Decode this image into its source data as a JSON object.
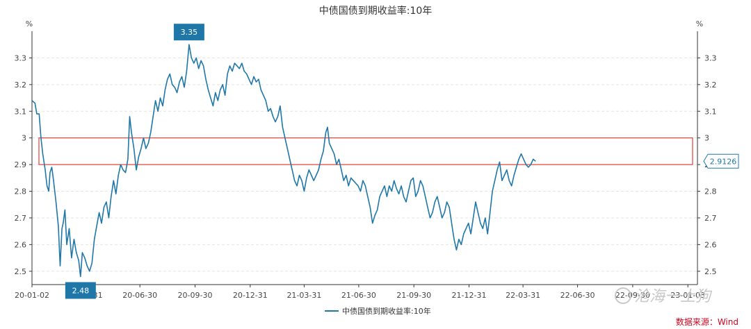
{
  "chart_data": {
    "type": "line",
    "title": "中债国债到期收益率:10年",
    "y_unit_left": "%",
    "y_unit_right": "%",
    "ylim": [
      2.45,
      3.4
    ],
    "yticks": [
      2.5,
      2.6,
      2.7,
      2.8,
      2.9,
      3,
      3.1,
      3.2,
      3.3
    ],
    "ytick_labels": [
      "2.5",
      "2.6",
      "2.7",
      "2.8",
      "2.9",
      "3",
      "3.1",
      "3.2",
      "3.3"
    ],
    "x_range_days": [
      0,
      1110
    ],
    "xticks": [
      {
        "day": 0,
        "label": "20-01-02"
      },
      {
        "day": 89,
        "label": "20-03-31"
      },
      {
        "day": 180,
        "label": "20-06-30"
      },
      {
        "day": 272,
        "label": "20-09-30"
      },
      {
        "day": 364,
        "label": "20-12-31"
      },
      {
        "day": 454,
        "label": "21-03-31"
      },
      {
        "day": 545,
        "label": "21-06-30"
      },
      {
        "day": 637,
        "label": "21-09-30"
      },
      {
        "day": 729,
        "label": "21-12-31"
      },
      {
        "day": 819,
        "label": "22-03-31"
      },
      {
        "day": 910,
        "label": "22-06-30"
      },
      {
        "day": 1002,
        "label": "22-09-30"
      },
      {
        "day": 1094,
        "label": "23-01-03"
      }
    ],
    "series": [
      {
        "name": "中债国债到期收益率:10年",
        "color": "#1f77a8",
        "points": [
          [
            0,
            3.14
          ],
          [
            5,
            3.13
          ],
          [
            8,
            3.09
          ],
          [
            12,
            3.09
          ],
          [
            15,
            3.0
          ],
          [
            18,
            2.94
          ],
          [
            22,
            2.88
          ],
          [
            25,
            2.82
          ],
          [
            28,
            2.8
          ],
          [
            30,
            2.87
          ],
          [
            33,
            2.89
          ],
          [
            36,
            2.84
          ],
          [
            40,
            2.76
          ],
          [
            44,
            2.67
          ],
          [
            47,
            2.52
          ],
          [
            50,
            2.66
          ],
          [
            52,
            2.68
          ],
          [
            55,
            2.73
          ],
          [
            58,
            2.6
          ],
          [
            62,
            2.66
          ],
          [
            66,
            2.55
          ],
          [
            70,
            2.62
          ],
          [
            74,
            2.57
          ],
          [
            78,
            2.54
          ],
          [
            81,
            2.48
          ],
          [
            84,
            2.57
          ],
          [
            88,
            2.55
          ],
          [
            92,
            2.52
          ],
          [
            96,
            2.5
          ],
          [
            100,
            2.53
          ],
          [
            104,
            2.62
          ],
          [
            108,
            2.67
          ],
          [
            112,
            2.72
          ],
          [
            116,
            2.68
          ],
          [
            120,
            2.74
          ],
          [
            124,
            2.76
          ],
          [
            128,
            2.7
          ],
          [
            132,
            2.78
          ],
          [
            136,
            2.84
          ],
          [
            140,
            2.79
          ],
          [
            144,
            2.86
          ],
          [
            148,
            2.9
          ],
          [
            152,
            2.88
          ],
          [
            156,
            2.87
          ],
          [
            160,
            2.92
          ],
          [
            163,
            3.08
          ],
          [
            166,
            3.02
          ],
          [
            170,
            2.96
          ],
          [
            174,
            2.88
          ],
          [
            178,
            2.93
          ],
          [
            182,
            2.96
          ],
          [
            186,
            3.0
          ],
          [
            190,
            2.96
          ],
          [
            194,
            2.98
          ],
          [
            198,
            3.02
          ],
          [
            202,
            3.08
          ],
          [
            206,
            3.14
          ],
          [
            210,
            3.1
          ],
          [
            214,
            3.15
          ],
          [
            218,
            3.12
          ],
          [
            222,
            3.18
          ],
          [
            226,
            3.22
          ],
          [
            230,
            3.24
          ],
          [
            234,
            3.2
          ],
          [
            238,
            3.19
          ],
          [
            242,
            3.17
          ],
          [
            246,
            3.21
          ],
          [
            250,
            3.23
          ],
          [
            254,
            3.19
          ],
          [
            258,
            3.25
          ],
          [
            262,
            3.35
          ],
          [
            266,
            3.3
          ],
          [
            270,
            3.28
          ],
          [
            274,
            3.3
          ],
          [
            278,
            3.26
          ],
          [
            282,
            3.29
          ],
          [
            286,
            3.27
          ],
          [
            290,
            3.22
          ],
          [
            294,
            3.18
          ],
          [
            298,
            3.15
          ],
          [
            302,
            3.12
          ],
          [
            306,
            3.17
          ],
          [
            310,
            3.14
          ],
          [
            314,
            3.18
          ],
          [
            318,
            3.2
          ],
          [
            322,
            3.16
          ],
          [
            326,
            3.24
          ],
          [
            330,
            3.27
          ],
          [
            334,
            3.25
          ],
          [
            338,
            3.28
          ],
          [
            342,
            3.27
          ],
          [
            346,
            3.26
          ],
          [
            350,
            3.28
          ],
          [
            354,
            3.25
          ],
          [
            358,
            3.24
          ],
          [
            362,
            3.22
          ],
          [
            366,
            3.2
          ],
          [
            370,
            3.23
          ],
          [
            374,
            3.21
          ],
          [
            378,
            3.22
          ],
          [
            382,
            3.18
          ],
          [
            386,
            3.16
          ],
          [
            390,
            3.14
          ],
          [
            394,
            3.1
          ],
          [
            398,
            3.11
          ],
          [
            402,
            3.08
          ],
          [
            406,
            3.06
          ],
          [
            410,
            3.08
          ],
          [
            414,
            3.12
          ],
          [
            418,
            3.04
          ],
          [
            422,
            3.0
          ],
          [
            426,
            2.96
          ],
          [
            430,
            2.92
          ],
          [
            434,
            2.88
          ],
          [
            438,
            2.84
          ],
          [
            442,
            2.82
          ],
          [
            446,
            2.86
          ],
          [
            450,
            2.84
          ],
          [
            454,
            2.8
          ],
          [
            458,
            2.85
          ],
          [
            462,
            2.88
          ],
          [
            466,
            2.86
          ],
          [
            470,
            2.84
          ],
          [
            474,
            2.86
          ],
          [
            478,
            2.88
          ],
          [
            482,
            2.92
          ],
          [
            486,
            2.95
          ],
          [
            490,
            3.02
          ],
          [
            493,
            3.04
          ],
          [
            496,
            2.98
          ],
          [
            500,
            2.96
          ],
          [
            504,
            2.94
          ],
          [
            508,
            2.9
          ],
          [
            512,
            2.92
          ],
          [
            516,
            2.88
          ],
          [
            520,
            2.84
          ],
          [
            524,
            2.86
          ],
          [
            528,
            2.82
          ],
          [
            532,
            2.85
          ],
          [
            536,
            2.84
          ],
          [
            540,
            2.83
          ],
          [
            544,
            2.82
          ],
          [
            548,
            2.8
          ],
          [
            552,
            2.84
          ],
          [
            556,
            2.82
          ],
          [
            560,
            2.78
          ],
          [
            564,
            2.74
          ],
          [
            568,
            2.68
          ],
          [
            572,
            2.71
          ],
          [
            576,
            2.73
          ],
          [
            580,
            2.78
          ],
          [
            584,
            2.8
          ],
          [
            588,
            2.82
          ],
          [
            592,
            2.78
          ],
          [
            596,
            2.82
          ],
          [
            600,
            2.8
          ],
          [
            604,
            2.84
          ],
          [
            608,
            2.81
          ],
          [
            612,
            2.79
          ],
          [
            616,
            2.82
          ],
          [
            620,
            2.78
          ],
          [
            624,
            2.76
          ],
          [
            628,
            2.8
          ],
          [
            632,
            2.84
          ],
          [
            636,
            2.85
          ],
          [
            640,
            2.78
          ],
          [
            644,
            2.8
          ],
          [
            648,
            2.84
          ],
          [
            652,
            2.82
          ],
          [
            656,
            2.78
          ],
          [
            660,
            2.74
          ],
          [
            664,
            2.7
          ],
          [
            668,
            2.72
          ],
          [
            672,
            2.76
          ],
          [
            676,
            2.78
          ],
          [
            680,
            2.74
          ],
          [
            684,
            2.7
          ],
          [
            688,
            2.72
          ],
          [
            692,
            2.76
          ],
          [
            696,
            2.74
          ],
          [
            700,
            2.68
          ],
          [
            704,
            2.62
          ],
          [
            708,
            2.58
          ],
          [
            712,
            2.62
          ],
          [
            716,
            2.6
          ],
          [
            720,
            2.64
          ],
          [
            724,
            2.66
          ],
          [
            728,
            2.68
          ],
          [
            732,
            2.64
          ],
          [
            736,
            2.7
          ],
          [
            740,
            2.76
          ],
          [
            744,
            2.72
          ],
          [
            748,
            2.68
          ],
          [
            752,
            2.66
          ],
          [
            756,
            2.7
          ],
          [
            760,
            2.64
          ],
          [
            764,
            2.72
          ],
          [
            768,
            2.8
          ],
          [
            772,
            2.84
          ],
          [
            776,
            2.88
          ],
          [
            780,
            2.91
          ],
          [
            784,
            2.84
          ],
          [
            788,
            2.86
          ],
          [
            792,
            2.88
          ],
          [
            796,
            2.84
          ],
          [
            800,
            2.82
          ],
          [
            804,
            2.86
          ],
          [
            808,
            2.89
          ],
          [
            812,
            2.92
          ],
          [
            816,
            2.94
          ],
          [
            820,
            2.92
          ],
          [
            824,
            2.9
          ],
          [
            828,
            2.89
          ],
          [
            832,
            2.9
          ],
          [
            836,
            2.92
          ],
          [
            840,
            2.9126
          ]
        ]
      }
    ],
    "annotations": [
      {
        "label": "3.35",
        "day": 262,
        "value": 3.35,
        "position": "above"
      },
      {
        "label": "2.48",
        "day": 81,
        "value": 2.48,
        "position": "below"
      }
    ],
    "end_label": "2.9126",
    "highlight_band": [
      2.9,
      3.0
    ],
    "legend": {
      "label": "中债国债到期收益率:10年",
      "placement": "bottom-center"
    }
  },
  "source_label": "数据来源：Wind",
  "watermark_text": "沧海一土狗"
}
